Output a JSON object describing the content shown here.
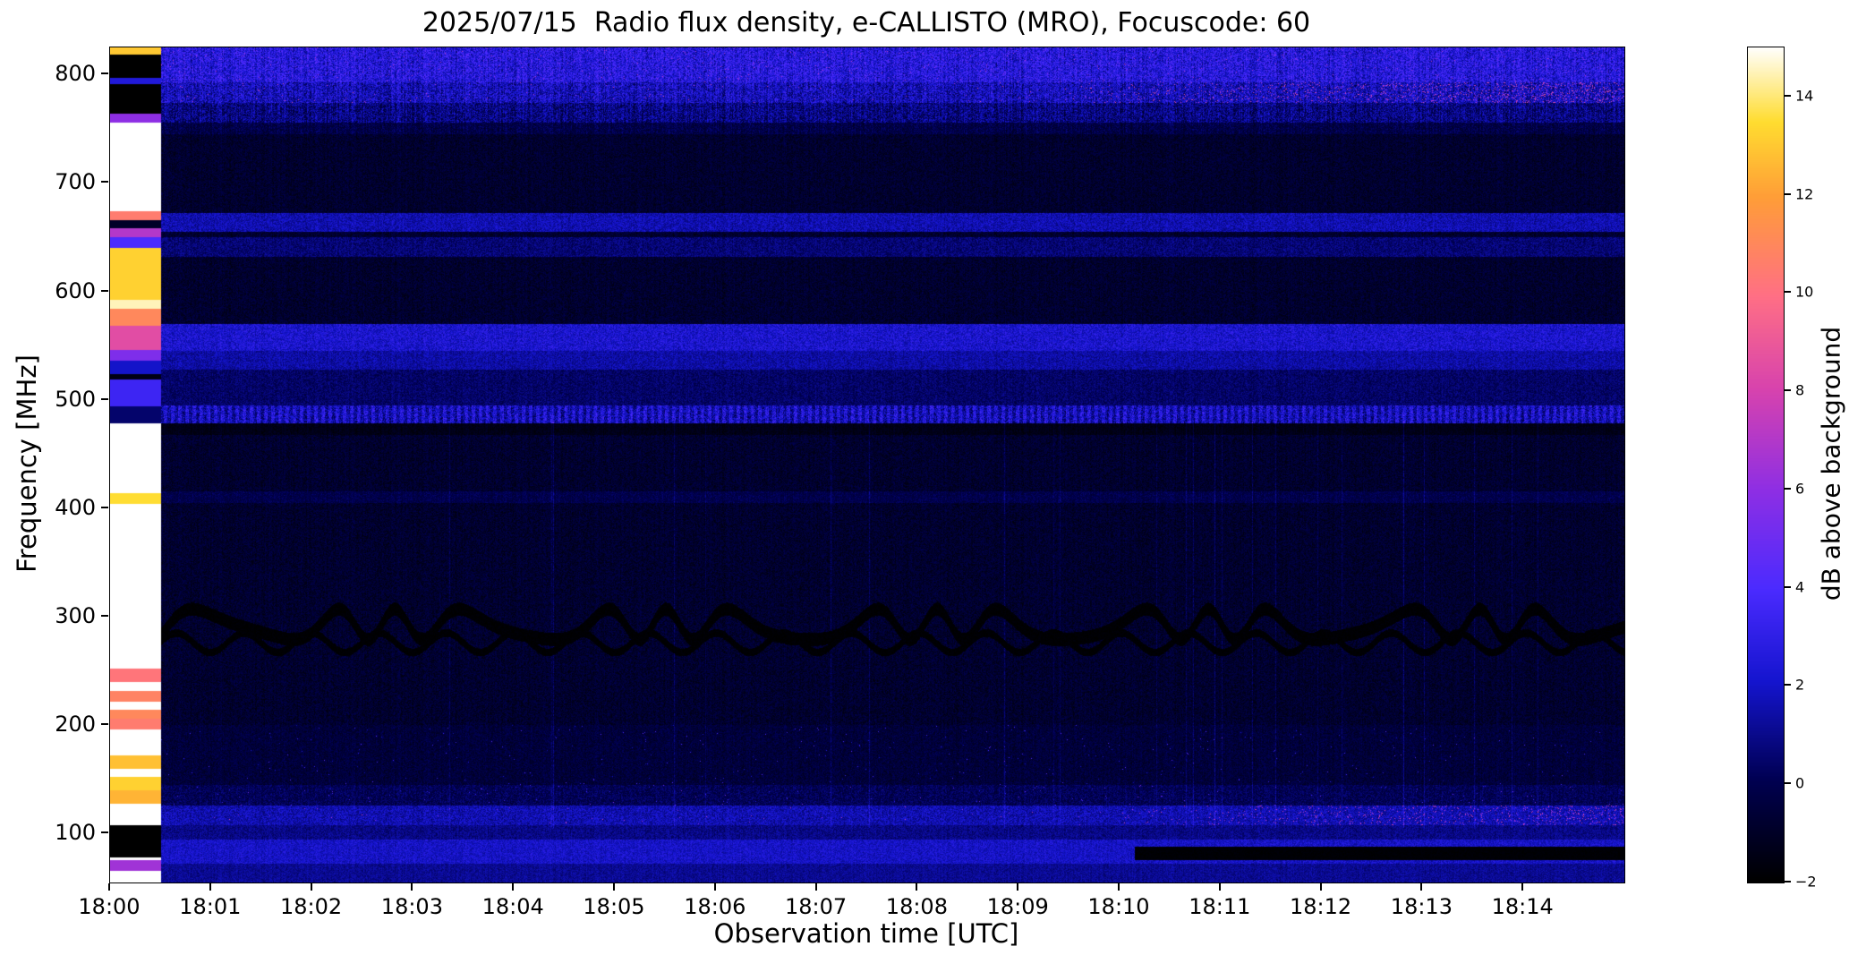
{
  "figure": {
    "background": "#ffffff"
  },
  "chart_data": {
    "type": "heatmap",
    "title": "2025/07/15  Radio flux density, e-CALLISTO (MRO), Focuscode: 60",
    "xlabel": "Observation time [UTC]",
    "ylabel": "Frequency [MHz]",
    "colorbar_label": "dB above background",
    "x_tick_labels": [
      "18:00",
      "18:01",
      "18:02",
      "18:03",
      "18:04",
      "18:05",
      "18:06",
      "18:07",
      "18:08",
      "18:09",
      "18:10",
      "18:11",
      "18:12",
      "18:13",
      "18:14"
    ],
    "x_range_minutes": [
      0,
      15
    ],
    "y_ticks": [
      100,
      200,
      300,
      400,
      500,
      600,
      700,
      800
    ],
    "y_range_mhz": [
      55,
      825
    ],
    "value_range_db": [
      -2,
      15
    ],
    "colorbar_ticks": [
      {
        "v": 14,
        "label": "14"
      },
      {
        "v": 12,
        "label": "12"
      },
      {
        "v": 10,
        "label": "10"
      },
      {
        "v": 8,
        "label": "8"
      },
      {
        "v": 6,
        "label": "6"
      },
      {
        "v": 4,
        "label": "4"
      },
      {
        "v": 2,
        "label": "2"
      },
      {
        "v": 0,
        "label": "0"
      },
      {
        "v": -2,
        "label": "−2"
      }
    ],
    "grid": false,
    "colormap_stops": [
      [
        0.0,
        "#000000"
      ],
      [
        0.12,
        "#000050"
      ],
      [
        0.24,
        "#1515cf"
      ],
      [
        0.35,
        "#4b2bff"
      ],
      [
        0.47,
        "#8f2fe4"
      ],
      [
        0.59,
        "#d843ae"
      ],
      [
        0.7,
        "#ff6f86"
      ],
      [
        0.82,
        "#ff9e38"
      ],
      [
        0.91,
        "#ffdd30"
      ],
      [
        1.0,
        "#ffffff"
      ]
    ],
    "background": {
      "base": -0.8,
      "noise": 0.75
    },
    "calibration_strip": {
      "end_minute": 0.5,
      "base_db": 15,
      "bands": [
        {
          "f": [
            818,
            825
          ],
          "v": 13
        },
        {
          "f": [
            797,
            818
          ],
          "v": -2
        },
        {
          "f": [
            791,
            797
          ],
          "v": 2.5
        },
        {
          "f": [
            764,
            791
          ],
          "v": -2
        },
        {
          "f": [
            756,
            764
          ],
          "v": 6
        },
        {
          "f": [
            666,
            674
          ],
          "v": 10.5
        },
        {
          "f": [
            658,
            666
          ],
          "v": -1
        },
        {
          "f": [
            650,
            658
          ],
          "v": 7
        },
        {
          "f": [
            640,
            650
          ],
          "v": 4
        },
        {
          "f": [
            592,
            640
          ],
          "v": 13.2
        },
        {
          "f": [
            584,
            592
          ],
          "v": 14.5
        },
        {
          "f": [
            568,
            584
          ],
          "v": 11
        },
        {
          "f": [
            546,
            568
          ],
          "v": 8.5
        },
        {
          "f": [
            536,
            546
          ],
          "v": 5.5
        },
        {
          "f": [
            524,
            536
          ],
          "v": 2
        },
        {
          "f": [
            519,
            524
          ],
          "v": -1.5
        },
        {
          "f": [
            494,
            519
          ],
          "v": 3.5
        },
        {
          "f": [
            478,
            494
          ],
          "v": 0.5
        },
        {
          "f": [
            404,
            414
          ],
          "v": 13.5
        },
        {
          "f": [
            240,
            252
          ],
          "v": 10.2
        },
        {
          "f": [
            222,
            232
          ],
          "v": 10.8
        },
        {
          "f": [
            206,
            214
          ],
          "v": 11
        },
        {
          "f": [
            196,
            206
          ],
          "v": 10.5
        },
        {
          "f": [
            160,
            172
          ],
          "v": 12.8
        },
        {
          "f": [
            140,
            152
          ],
          "v": 13.2
        },
        {
          "f": [
            128,
            140
          ],
          "v": 12.5
        },
        {
          "f": [
            78,
            108
          ],
          "v": -2
        },
        {
          "f": [
            66,
            76
          ],
          "v": 6.5
        }
      ]
    },
    "feature_bands": [
      {
        "f": [
          793,
          832
        ],
        "base": 2.6,
        "noise": 1.6,
        "stripe": 2.0,
        "speckle_db": 6,
        "speckle_p": 0.01
      },
      {
        "f": [
          774,
          793
        ],
        "base": 1.8,
        "noise": 1.6,
        "stripe": 2.0,
        "speckle_db": 7.5,
        "speckle_p": 0.004,
        "speckle_ramp": [
          9.5,
          0.015,
          0.12
        ]
      },
      {
        "f": [
          756,
          774
        ],
        "base": 0.8,
        "noise": 1.4,
        "stripe": 2.0
      },
      {
        "f": [
          745,
          756
        ],
        "base": -0.2,
        "noise": 0.8,
        "stripe": 1.0
      },
      {
        "f": [
          655,
          672
        ],
        "base": 1.6,
        "noise": 0.9
      },
      {
        "f": [
          632,
          650
        ],
        "base": 0.6,
        "noise": 0.8
      },
      {
        "f": [
          545,
          570
        ],
        "base": 2.2,
        "noise": 1.0
      },
      {
        "f": [
          528,
          545
        ],
        "base": 1.4,
        "noise": 0.8
      },
      {
        "f": [
          495,
          528
        ],
        "base": 0.4,
        "noise": 0.7
      },
      {
        "f": [
          478,
          495
        ],
        "base": 1.2,
        "noise": 1.4,
        "dash": true
      },
      {
        "f": [
          468,
          478
        ],
        "base": -1.4,
        "noise": 0.4
      },
      {
        "f": [
          405,
          416
        ],
        "base": -0.1,
        "noise": 0.6
      },
      {
        "f": [
          145,
          200
        ],
        "base": -0.5,
        "noise": 0.7,
        "speckle_db": 3,
        "speckle_p": 0.003
      },
      {
        "f": [
          126,
          145
        ],
        "base": 0.1,
        "noise": 0.8,
        "speckle_db": 4,
        "speckle_p": 0.004
      },
      {
        "f": [
          108,
          126
        ],
        "base": 1.6,
        "noise": 1.0,
        "speckle_db": 7,
        "speckle_p": 0.002,
        "speckle_ramp": [
          10,
          0.01,
          0.09
        ]
      },
      {
        "f": [
          95,
          108
        ],
        "base": 0.9,
        "noise": 0.7
      },
      {
        "f": [
          72,
          95
        ],
        "base": 2.0,
        "noise": 0.8
      },
      {
        "f": [
          55,
          72
        ],
        "base": 1.1,
        "noise": 0.6
      }
    ],
    "wave_pattern": {
      "f_range": [
        262,
        322
      ],
      "center": 293,
      "amp": 14,
      "width": 6,
      "dark_db": -1.9
    },
    "black_stripe": {
      "f": [
        76,
        88
      ],
      "start_minute": 10.15,
      "value_db": -2
    }
  }
}
